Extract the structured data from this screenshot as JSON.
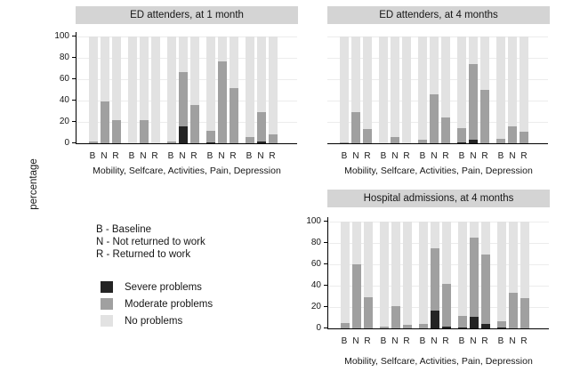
{
  "figure": {
    "ylabel": "percentage",
    "key": {
      "lines": [
        "B - Baseline",
        "N - Not returned to work",
        "R - Returned to work"
      ]
    },
    "legend": [
      {
        "id": "severe",
        "label": "Severe problems",
        "color": "#242424"
      },
      {
        "id": "moderate",
        "label": "Moderate problems",
        "color": "#a0a0a0"
      },
      {
        "id": "none",
        "label": "No problems",
        "color": "#e2e2e2"
      }
    ],
    "colors": {
      "title_strip_bg": "#d4d4d4",
      "gridline": "#ececec",
      "axis": "#000000"
    }
  },
  "chart_data": [
    {
      "type": "bar",
      "stacked": true,
      "title": "ED attenders, at 1 month",
      "categories": [
        "Mobility",
        "Selfcare",
        "Activities",
        "Pain",
        "Depression"
      ],
      "categories_label": "Mobility, Selfcare, Activities, Pain, Depression",
      "bar_labels": [
        "B",
        "N",
        "R"
      ],
      "ylabel": "percentage",
      "ylim": [
        0,
        100
      ],
      "yticks": [
        0,
        20,
        40,
        60,
        80,
        100
      ],
      "grid": true,
      "show_y_axis": true,
      "legend_position": "shared-bottom-left",
      "series": [
        {
          "name": "Severe problems",
          "color": "#242424",
          "values": [
            [
              0,
              0,
              0
            ],
            [
              0,
              0,
              0
            ],
            [
              0,
              16,
              0
            ],
            [
              1,
              0,
              0
            ],
            [
              0,
              2,
              0
            ]
          ]
        },
        {
          "name": "Moderate problems",
          "color": "#a0a0a0",
          "values": [
            [
              2,
              39,
              22
            ],
            [
              0,
              22,
              0
            ],
            [
              2,
              51,
              36
            ],
            [
              11,
              77,
              52
            ],
            [
              6,
              27,
              8
            ]
          ]
        },
        {
          "name": "No problems",
          "color": "#e2e2e2",
          "values": [
            [
              98,
              61,
              78
            ],
            [
              100,
              78,
              100
            ],
            [
              98,
              33,
              64
            ],
            [
              88,
              23,
              48
            ],
            [
              94,
              71,
              92
            ]
          ]
        }
      ]
    },
    {
      "type": "bar",
      "stacked": true,
      "title": "ED attenders, at 4 months",
      "categories": [
        "Mobility",
        "Selfcare",
        "Activities",
        "Pain",
        "Depression"
      ],
      "categories_label": "Mobility, Selfcare, Activities, Pain, Depression",
      "bar_labels": [
        "B",
        "N",
        "R"
      ],
      "ylabel": "percentage",
      "ylim": [
        0,
        100
      ],
      "yticks": [
        0,
        20,
        40,
        60,
        80,
        100
      ],
      "grid": true,
      "show_y_axis": false,
      "legend_position": "shared-bottom-left",
      "series": [
        {
          "name": "Severe problems",
          "color": "#242424",
          "values": [
            [
              0,
              0,
              0
            ],
            [
              0,
              0,
              0
            ],
            [
              0,
              0,
              0
            ],
            [
              1,
              3,
              0
            ],
            [
              0,
              0,
              0
            ]
          ]
        },
        {
          "name": "Moderate problems",
          "color": "#a0a0a0",
          "values": [
            [
              1,
              29,
              13
            ],
            [
              0,
              6,
              0
            ],
            [
              3,
              46,
              24
            ],
            [
              13,
              71,
              50
            ],
            [
              4,
              16,
              11
            ]
          ]
        },
        {
          "name": "No problems",
          "color": "#e2e2e2",
          "values": [
            [
              99,
              71,
              87
            ],
            [
              100,
              94,
              100
            ],
            [
              97,
              54,
              76
            ],
            [
              86,
              26,
              50
            ],
            [
              96,
              84,
              89
            ]
          ]
        }
      ]
    },
    {
      "type": "bar",
      "stacked": true,
      "title": "Hospital admissions, at 4 months",
      "categories": [
        "Mobility",
        "Selfcare",
        "Activities",
        "Pain",
        "Depression"
      ],
      "categories_label": "Mobility, Selfcare, Activities, Pain, Depression",
      "bar_labels": [
        "B",
        "N",
        "R"
      ],
      "ylabel": "percentage",
      "ylim": [
        0,
        100
      ],
      "yticks": [
        0,
        20,
        40,
        60,
        80,
        100
      ],
      "grid": true,
      "show_y_axis": true,
      "legend_position": "shared-bottom-left",
      "series": [
        {
          "name": "Severe problems",
          "color": "#242424",
          "values": [
            [
              0,
              0,
              0
            ],
            [
              0,
              0,
              0
            ],
            [
              0,
              17,
              2
            ],
            [
              1,
              11,
              4
            ],
            [
              1,
              0,
              0
            ]
          ]
        },
        {
          "name": "Moderate problems",
          "color": "#a0a0a0",
          "values": [
            [
              5,
              60,
              29
            ],
            [
              2,
              21,
              3
            ],
            [
              4,
              58,
              40
            ],
            [
              11,
              74,
              65
            ],
            [
              6,
              33,
              28
            ]
          ]
        },
        {
          "name": "No problems",
          "color": "#e2e2e2",
          "values": [
            [
              95,
              40,
              71
            ],
            [
              98,
              79,
              97
            ],
            [
              96,
              25,
              58
            ],
            [
              88,
              15,
              31
            ],
            [
              93,
              67,
              72
            ]
          ]
        }
      ]
    }
  ]
}
